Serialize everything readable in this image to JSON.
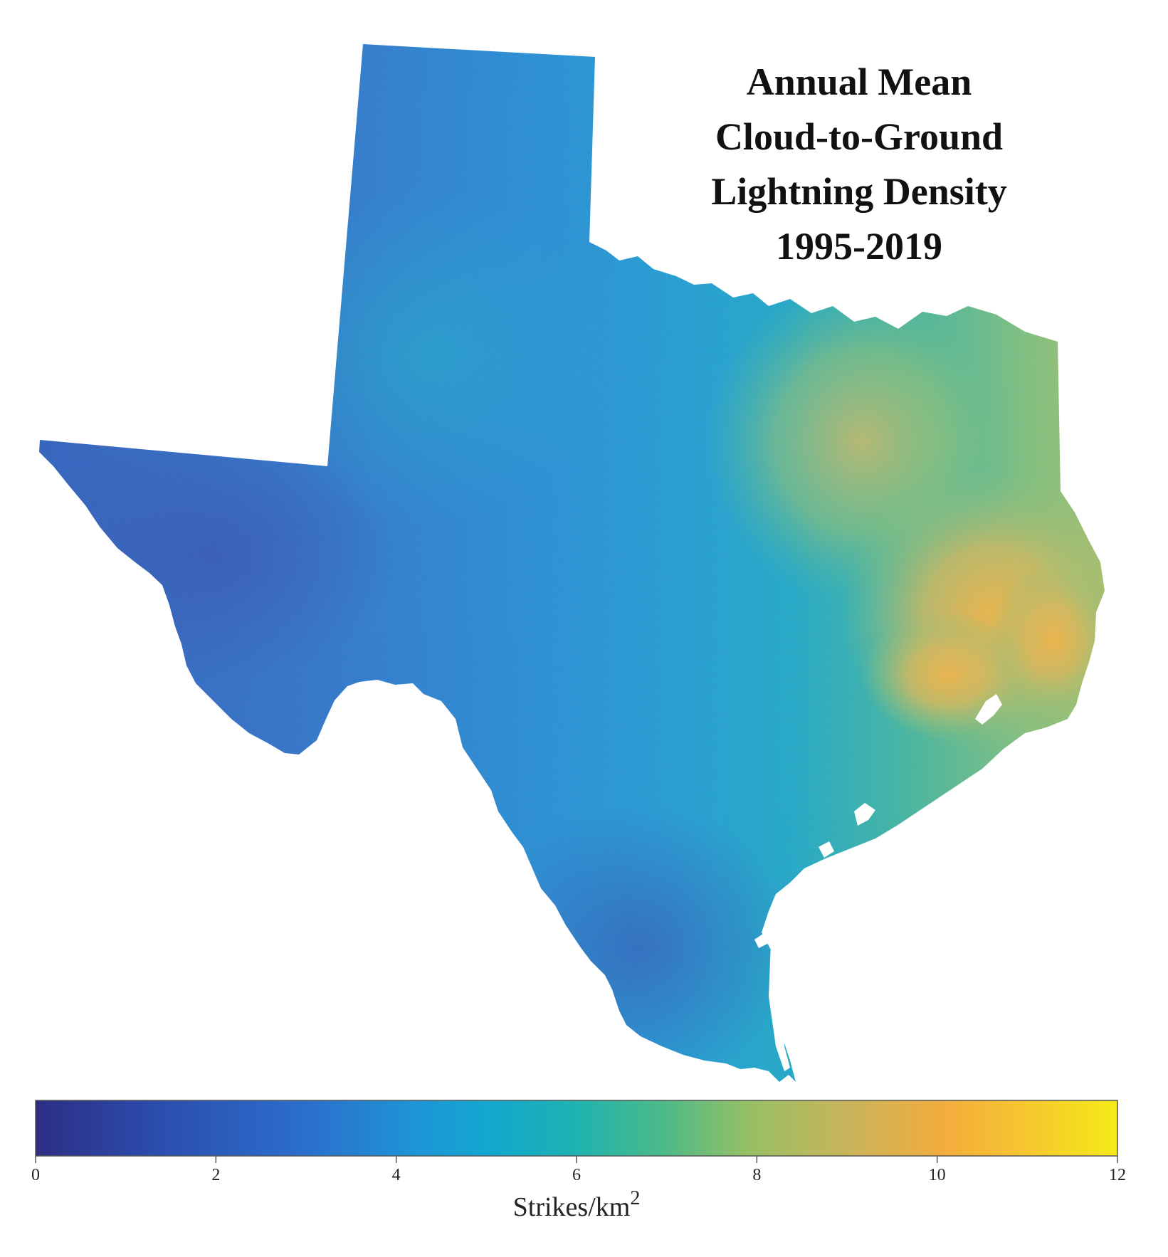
{
  "title": {
    "line1": "Annual Mean",
    "line2": "Cloud-to-Ground",
    "line3": "Lightning Density",
    "line4": "1995-2019"
  },
  "colorbar": {
    "min": 0,
    "max": 12,
    "ticks": [
      "0",
      "2",
      "4",
      "6",
      "8",
      "10",
      "12"
    ],
    "unit_base": "Strikes/km",
    "unit_exponent": "2",
    "colors": [
      "#2d2e83",
      "#2b5fbd",
      "#1f8fd4",
      "#19a9c9",
      "#2bb89a",
      "#8cc16a",
      "#c9b85a",
      "#f4b23a",
      "#f5e81c"
    ]
  },
  "map": {
    "region": "Texas",
    "base_color": "#2a86d0",
    "high_color": "#e9b53e",
    "mid_color": "#6fbe86",
    "low_color": "#2f55b0"
  }
}
